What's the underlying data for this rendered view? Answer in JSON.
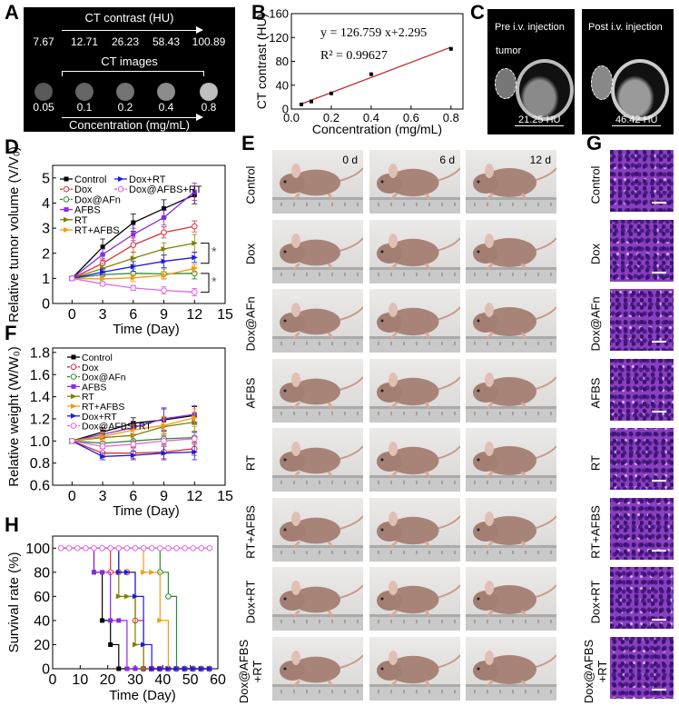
{
  "panel_labels": {
    "A": "A",
    "B": "B",
    "C": "C",
    "D": "D",
    "E": "E",
    "F": "F",
    "G": "G",
    "H": "H"
  },
  "panel_a": {
    "title": "CT contrast (HU)",
    "hu_values": [
      "7.67",
      "12.71",
      "26.23",
      "58.43",
      "100.89"
    ],
    "images_label": "CT images",
    "concentrations": [
      "0.05",
      "0.1",
      "0.2",
      "0.4",
      "0.8"
    ],
    "bottom_label": "Concentration (mg/mL)",
    "brightness": [
      0.35,
      0.4,
      0.45,
      0.55,
      0.75
    ]
  },
  "panel_c": {
    "pre_title": "Pre i.v. injection",
    "post_title": "Post i.v. injection",
    "tumor_label": "tumor",
    "pre_hu": "21.25 HU",
    "post_hu": "46.42 HU"
  },
  "panel_e": {
    "times": [
      "0 d",
      "6 d",
      "12 d"
    ],
    "groups": [
      "Control",
      "Dox",
      "Dox@AFn",
      "AFBS",
      "RT",
      "RT+AFBS",
      "Dox+RT",
      "Dox@AFBS\n+RT"
    ]
  },
  "panel_g": {
    "groups": [
      "Control",
      "Dox",
      "Dox@AFn",
      "AFBS",
      "RT",
      "RT+AFBS",
      "Dox+RT",
      "Dox@AFBS\n+RT"
    ]
  },
  "chart_data": [
    {
      "id": "B",
      "type": "scatter",
      "xlabel": "Concentration (mg/mL)",
      "ylabel": "CT contrast (HU)",
      "xlim": [
        0,
        0.86
      ],
      "ylim": [
        0,
        160
      ],
      "xticks": [
        0.0,
        0.2,
        0.4,
        0.6,
        0.8
      ],
      "xtick_labels": [
        "0.0",
        "0.2",
        "0.4",
        "0.6",
        "0.8"
      ],
      "yticks": [
        0,
        40,
        80,
        120,
        160
      ],
      "ytick_labels": [
        "0",
        "40",
        "80",
        "120",
        "160"
      ],
      "x": [
        0.05,
        0.1,
        0.2,
        0.4,
        0.8
      ],
      "y": [
        7.67,
        12.71,
        26.23,
        58.43,
        100.89
      ],
      "fit": {
        "slope": 126.759,
        "intercept": 2.295,
        "color": "#c0282d"
      },
      "equation": "y = 126.759 x+2.295",
      "r2": "R² = 0.99627"
    },
    {
      "id": "D",
      "type": "line",
      "xlabel": "Time (Day)",
      "ylabel": "Relative tumor volume (V/V₀)",
      "xlim": [
        -1.9,
        15
      ],
      "ylim": [
        0,
        5.5
      ],
      "xticks": [
        0,
        3,
        6,
        9,
        12,
        15
      ],
      "xtick_labels": [
        "0",
        "3",
        "6",
        "9",
        "12",
        "15"
      ],
      "yticks": [
        0,
        1,
        2,
        3,
        4,
        5
      ],
      "ytick_labels": [
        "0",
        "1",
        "2",
        "3",
        "4",
        "5"
      ],
      "x": [
        0,
        3,
        6,
        9,
        12
      ],
      "legend": "top-left, two columns",
      "significance": [
        "*",
        "*"
      ],
      "series": [
        {
          "name": "Control",
          "color": "#000000",
          "marker": "square",
          "values": [
            1,
            2.25,
            3.22,
            3.78,
            4.32
          ],
          "err": [
            0.08,
            0.32,
            0.35,
            0.35,
            0.35
          ]
        },
        {
          "name": "Dox",
          "color": "#e0303a",
          "marker": "open-circle",
          "values": [
            1,
            1.6,
            2.33,
            2.83,
            3.07
          ],
          "err": [
            0.08,
            0.2,
            0.28,
            0.22,
            0.22
          ]
        },
        {
          "name": "Dox@AFn",
          "color": "#2e8b2e",
          "marker": "open-circle",
          "values": [
            1,
            1.15,
            1.2,
            1.18,
            1.2
          ],
          "err": [
            0.08,
            0.15,
            0.18,
            0.2,
            0.22
          ]
        },
        {
          "name": "AFBS",
          "color": "#8a2be2",
          "marker": "square",
          "values": [
            1,
            1.95,
            2.75,
            3.42,
            4.45
          ],
          "err": [
            0.08,
            0.22,
            0.25,
            0.3,
            0.35
          ]
        },
        {
          "name": "RT",
          "color": "#808000",
          "marker": "triangle",
          "values": [
            1,
            1.4,
            1.8,
            2.17,
            2.4
          ],
          "err": [
            0.08,
            0.2,
            0.25,
            0.25,
            0.35
          ]
        },
        {
          "name": "RT+AFBS",
          "color": "#f39c12",
          "marker": "triangle",
          "values": [
            1,
            0.98,
            1.02,
            1.12,
            1.4
          ],
          "err": [
            0.08,
            0.12,
            0.15,
            0.15,
            0.15
          ]
        },
        {
          "name": "Dox+RT",
          "color": "#1a1adf",
          "marker": "triangle",
          "values": [
            1,
            1.25,
            1.47,
            1.68,
            1.83
          ],
          "err": [
            0.08,
            0.12,
            0.2,
            0.25,
            0.2
          ]
        },
        {
          "name": "Dox@AFBS+RT",
          "color": "#e066e0",
          "marker": "open-circle",
          "values": [
            1,
            0.78,
            0.62,
            0.52,
            0.45
          ],
          "err": [
            0.08,
            0.08,
            0.1,
            0.15,
            0.15
          ]
        }
      ]
    },
    {
      "id": "F",
      "type": "line",
      "xlabel": "Time (Day)",
      "ylabel": "Relative weight (W/W₀)",
      "xlim": [
        -1.9,
        15
      ],
      "ylim": [
        0.6,
        1.84
      ],
      "xticks": [
        0,
        3,
        6,
        9,
        12,
        15
      ],
      "xtick_labels": [
        "0",
        "3",
        "6",
        "9",
        "12",
        "15"
      ],
      "yticks": [
        0.6,
        0.8,
        1.0,
        1.2,
        1.4,
        1.6,
        1.8
      ],
      "ytick_labels": [
        "0.6",
        "0.8",
        "1.0",
        "1.2",
        "1.4",
        "1.6",
        "1.8"
      ],
      "x": [
        0,
        3,
        6,
        9,
        12
      ],
      "legend": "top-left",
      "series": [
        {
          "name": "Control",
          "color": "#000000",
          "marker": "square",
          "values": [
            1,
            1.08,
            1.16,
            1.19,
            1.23
          ],
          "err": [
            0.02,
            0.04,
            0.05,
            0.1,
            0.08
          ]
        },
        {
          "name": "Dox",
          "color": "#e0303a",
          "marker": "open-circle",
          "values": [
            1,
            0.89,
            0.89,
            0.9,
            0.93
          ],
          "err": [
            0.02,
            0.04,
            0.05,
            0.06,
            0.06
          ]
        },
        {
          "name": "Dox@AFn",
          "color": "#2e8b2e",
          "marker": "open-circle",
          "values": [
            1,
            0.98,
            1.0,
            1.02,
            1.03
          ],
          "err": [
            0.02,
            0.04,
            0.05,
            0.05,
            0.05
          ]
        },
        {
          "name": "AFBS",
          "color": "#8a2be2",
          "marker": "square",
          "values": [
            1,
            1.06,
            1.12,
            1.2,
            1.24
          ],
          "err": [
            0.02,
            0.04,
            0.06,
            0.1,
            0.08
          ]
        },
        {
          "name": "RT",
          "color": "#808000",
          "marker": "triangle",
          "values": [
            1,
            1.03,
            1.05,
            1.13,
            1.17
          ],
          "err": [
            0.02,
            0.04,
            0.05,
            0.08,
            0.08
          ]
        },
        {
          "name": "RT+AFBS",
          "color": "#f39c12",
          "marker": "triangle",
          "values": [
            1,
            1.04,
            1.1,
            1.14,
            1.21
          ],
          "err": [
            0.02,
            0.04,
            0.05,
            0.08,
            0.08
          ]
        },
        {
          "name": "Dox+RT",
          "color": "#1a1adf",
          "marker": "triangle",
          "values": [
            1,
            0.86,
            0.87,
            0.89,
            0.9
          ],
          "err": [
            0.02,
            0.03,
            0.04,
            0.06,
            0.07
          ]
        },
        {
          "name": "Dox@AFBS+RT",
          "color": "#e066e0",
          "marker": "open-circle",
          "values": [
            1,
            0.95,
            0.97,
            1.0,
            1.02
          ],
          "err": [
            0.02,
            0.04,
            0.04,
            0.05,
            0.05
          ]
        }
      ]
    },
    {
      "id": "H",
      "type": "line",
      "step": true,
      "xlabel": "Time (Day)",
      "ylabel": "Survival rate (%)",
      "xlim": [
        0,
        60
      ],
      "ylim": [
        0,
        110
      ],
      "xticks": [
        0,
        10,
        20,
        30,
        40,
        50,
        60
      ],
      "xtick_labels": [
        "0",
        "10",
        "20",
        "30",
        "40",
        "50",
        "60"
      ],
      "yticks": [
        0,
        20,
        40,
        60,
        80,
        100
      ],
      "ytick_labels": [
        "0",
        "20",
        "40",
        "60",
        "80",
        "100"
      ],
      "series": [
        {
          "name": "Control",
          "color": "#000000",
          "marker": "square",
          "points": [
            [
              15,
              80
            ],
            [
              18,
              40
            ],
            [
              21,
              20
            ],
            [
              24,
              0
            ]
          ]
        },
        {
          "name": "Dox",
          "color": "#e0303a",
          "marker": "open-circle",
          "points": [
            [
              21,
              80
            ],
            [
              30,
              40
            ],
            [
              33,
              0
            ]
          ]
        },
        {
          "name": "Dox@AFn",
          "color": "#2e8b2e",
          "marker": "open-circle",
          "points": [
            [
              39,
              80
            ],
            [
              42,
              60
            ],
            [
              45,
              0
            ]
          ]
        },
        {
          "name": "AFBS",
          "color": "#8a2be2",
          "marker": "square",
          "points": [
            [
              15,
              80
            ],
            [
              21,
              40
            ],
            [
              27,
              0
            ]
          ]
        },
        {
          "name": "RT",
          "color": "#808000",
          "marker": "triangle",
          "points": [
            [
              24,
              60
            ],
            [
              30,
              20
            ],
            [
              33,
              0
            ]
          ]
        },
        {
          "name": "RT+AFBS",
          "color": "#f39c12",
          "marker": "triangle",
          "points": [
            [
              33,
              80
            ],
            [
              39,
              40
            ],
            [
              42,
              0
            ]
          ]
        },
        {
          "name": "Dox+RT",
          "color": "#1a1adf",
          "marker": "triangle",
          "points": [
            [
              24,
              80
            ],
            [
              30,
              60
            ],
            [
              33,
              20
            ],
            [
              36,
              0
            ]
          ]
        },
        {
          "name": "Dox@AFBS+RT",
          "color": "#e066e0",
          "marker": "open-circle",
          "points": []
        }
      ]
    }
  ]
}
